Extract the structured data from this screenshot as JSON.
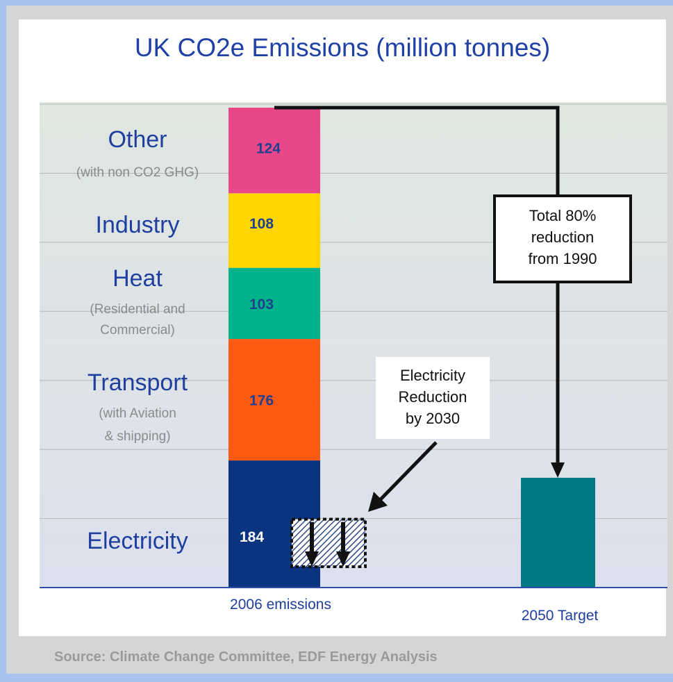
{
  "chart_data": {
    "type": "bar",
    "title": "UK CO2e Emissions (million tonnes)",
    "xlabel": "",
    "ylabel": "",
    "categories": [
      "2006 emissions",
      "2050 Target"
    ],
    "stack_order": [
      "Electricity",
      "Transport",
      "Heat",
      "Industry",
      "Other"
    ],
    "series": [
      {
        "name": "Electricity",
        "sublabel": [],
        "values": [
          184,
          null
        ],
        "color": "#0b3480",
        "label_color": "#ffffff"
      },
      {
        "name": "Transport",
        "sublabel": [
          "(with Aviation",
          "& shipping)"
        ],
        "values": [
          176,
          null
        ],
        "color": "#ff5a14",
        "label_color": "#1f3f8f"
      },
      {
        "name": "Heat",
        "sublabel": [
          "(Residential and",
          "Commercial)"
        ],
        "values": [
          103,
          null
        ],
        "color": "#00b38a",
        "label_color": "#1f3f8f"
      },
      {
        "name": "Industry",
        "sublabel": [],
        "values": [
          108,
          null
        ],
        "color": "#ffd500",
        "label_color": "#1f3f8f"
      },
      {
        "name": "Other",
        "sublabel": [
          "(with non CO2 GHG)"
        ],
        "values": [
          124,
          null
        ],
        "color": "#e8488a",
        "label_color": "#1f3f8f"
      }
    ],
    "target": {
      "value": 159,
      "color": "#007a85"
    },
    "total_2006": 695,
    "ylim": [
      0,
      700
    ],
    "gridlines": [
      100,
      200,
      300,
      400,
      500,
      600,
      700
    ],
    "electricity_reduction_2030": 100,
    "annotations": {
      "total_reduction": [
        "Total 80%",
        "reduction",
        "from 1990"
      ],
      "electricity_reduction": [
        "Electricity",
        "Reduction",
        "by 2030"
      ]
    },
    "colors": {
      "band_top": "#dfe7e0",
      "band_bottom": "#dde0ee",
      "grid": "#b5b8b5",
      "axis": "#2f4fa8"
    }
  },
  "source": "Source: Climate Change Committee, EDF Energy Analysis"
}
